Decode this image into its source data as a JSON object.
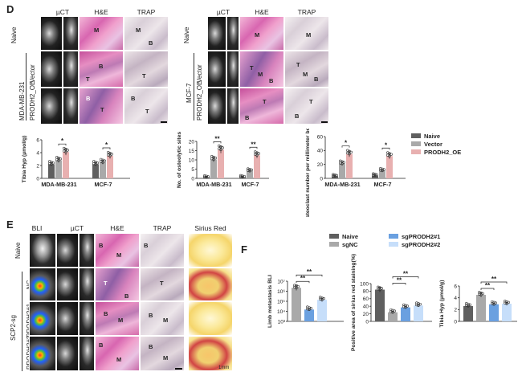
{
  "panel_d": {
    "letter": "D",
    "columns_left": [
      "µCT",
      "H&E",
      "TRAP"
    ],
    "columns_right": [
      "µCT",
      "H&E",
      "TRAP"
    ],
    "rows": [
      "Naive",
      "Vector",
      "PRODH2_OE"
    ],
    "group_left": "MDA-MB-231",
    "group_right": "MCF-7",
    "tags": {
      "l_he_naive": "M",
      "l_trap_naive": "M",
      "l_trap_naive_b": "B",
      "l_he_vec_b": "B",
      "l_he_vec_t": "T",
      "l_trap_vec_t": "T",
      "l_he_oe_b": "B",
      "l_he_oe_t": "T",
      "l_trap_oe_b": "B",
      "l_trap_oe_t": "T",
      "r_he_naive": "M",
      "r_trap_naive": "M",
      "r_he_vec_t": "T",
      "r_he_vec_m": "M",
      "r_he_vec_b": "B",
      "r_trap_vec_t": "T",
      "r_trap_vec_m": "M",
      "r_trap_vec_b": "B",
      "r_he_oe_t": "T",
      "r_he_oe_b": "B",
      "r_trap_oe_t": "T",
      "r_trap_oe_b": "B"
    }
  },
  "panel_e": {
    "letter": "E",
    "columns": [
      "BLI",
      "µCT",
      "H&E",
      "TRAP",
      "Sirius Red"
    ],
    "rows": [
      "Naive",
      "NC",
      "PRODH2#1",
      "PRODH2#2"
    ],
    "group": "SCP2-sg",
    "scale": "1mm",
    "tags": {
      "naive_he_b": "B",
      "naive_he_m": "M",
      "naive_trap_b": "B",
      "nc_he_t": "T",
      "nc_he_b": "B",
      "nc_trap_t": "T",
      "p1_he_m": "M",
      "p1_he_b": "B",
      "p1_trap_m": "M",
      "p1_trap_b": "B",
      "p2_he_m": "M",
      "p2_he_b": "B",
      "p2_trap_m": "M",
      "p2_trap_b": "B"
    }
  },
  "panel_f": {
    "letter": "F"
  },
  "chart_data": [
    {
      "type": "bar",
      "ylabel": "Tibia Hyp (µmol/g)",
      "categories": [
        "MDA-MB-231",
        "MCF-7"
      ],
      "ylim": [
        0,
        6
      ],
      "yticks": [
        "0",
        "2",
        "4",
        "6"
      ],
      "series": [
        {
          "name": "Naive",
          "values": [
            2.2,
            2.2
          ]
        },
        {
          "name": "Vector",
          "values": [
            2.8,
            2.5
          ]
        },
        {
          "name": "PRODH2_OE",
          "values": [
            4.1,
            3.5
          ]
        }
      ],
      "annotations": [
        "*",
        "*"
      ]
    },
    {
      "type": "bar",
      "ylabel": "No. of osteolytic sites",
      "categories": [
        "MDA-MB-231",
        "MCF-7"
      ],
      "ylim": [
        0,
        20
      ],
      "yticks": [
        "0",
        "5",
        "10",
        "15",
        "20"
      ],
      "series": [
        {
          "name": "Naive",
          "values": [
            0.5,
            0.6
          ]
        },
        {
          "name": "Vector",
          "values": [
            10.2,
            4.0
          ]
        },
        {
          "name": "PRODH2_OE",
          "values": [
            15.5,
            12.5
          ]
        }
      ],
      "annotations": [
        "**",
        "**"
      ]
    },
    {
      "type": "bar",
      "ylabel": "Osteoclast number per millimeter bo ne perimeter",
      "categories": [
        "MDA-MB-231",
        "MCF-7"
      ],
      "ylim": [
        0,
        60
      ],
      "yticks": [
        "0",
        "20",
        "40",
        "60"
      ],
      "series": [
        {
          "name": "Naive",
          "values": [
            3,
            4
          ]
        },
        {
          "name": "Vector",
          "values": [
            21,
            11
          ]
        },
        {
          "name": "PRODH2_OE",
          "values": [
            35,
            32
          ]
        }
      ],
      "annotations": [
        "*",
        "*"
      ],
      "legend": [
        "Naive",
        "Vector",
        "PRODH2_OE"
      ],
      "legend_colors": [
        "#5f5f5f",
        "#a9a9a9",
        "#e8b0b0"
      ]
    },
    {
      "type": "bar",
      "ylabel": "Limb metastasis BLI",
      "yscale": "log",
      "ylim": [
        1000,
        10000000
      ],
      "yticks": [
        "10³",
        "10⁴",
        "10⁵",
        "10⁶",
        "10⁷"
      ],
      "groups": [
        "Naive",
        "sgNC",
        "sgPRODH2#1",
        "sgPRODH2#2"
      ],
      "bars": [
        {
          "name": "sgNC",
          "value": 2200000
        },
        {
          "name": "sgPRODH2#1",
          "value": 15000
        },
        {
          "name": "sgPRODH2#2",
          "value": 140000
        }
      ],
      "annotations": [
        "**",
        "**"
      ]
    },
    {
      "type": "bar",
      "ylabel": "Positive area of sirius red staining(%)",
      "ylim": [
        0,
        100
      ],
      "yticks": [
        "0",
        "20",
        "40",
        "60",
        "80",
        "100"
      ],
      "bars": [
        {
          "name": "Naive",
          "value": 84
        },
        {
          "name": "sgNC",
          "value": 24
        },
        {
          "name": "sgPRODH2#1",
          "value": 37
        },
        {
          "name": "sgPRODH2#2",
          "value": 42
        }
      ],
      "annotations": [
        "**",
        "**"
      ]
    },
    {
      "type": "bar",
      "ylabel": "Tibia Hyp (µmol/g)",
      "ylim": [
        0,
        6
      ],
      "yticks": [
        "0",
        "2",
        "4",
        "6"
      ],
      "bars": [
        {
          "name": "Naive",
          "value": 2.6
        },
        {
          "name": "sgNC",
          "value": 4.5
        },
        {
          "name": "sgPRODH2#1",
          "value": 2.9
        },
        {
          "name": "sgPRODH2#2",
          "value": 3.0
        }
      ],
      "annotations": [
        "**",
        "**"
      ],
      "legend": [
        "Naive",
        "sgPRODH2#1",
        "sgNC",
        "sgPRODH2#2"
      ],
      "legend_colors": [
        "#5f5f5f",
        "#6aa0e0",
        "#a9a9a9",
        "#c6defa"
      ]
    }
  ]
}
